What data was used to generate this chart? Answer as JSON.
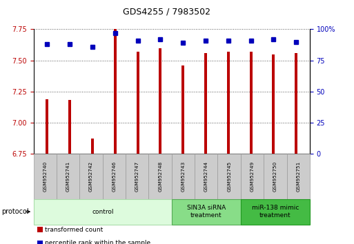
{
  "title": "GDS4255 / 7983502",
  "samples": [
    "GSM952740",
    "GSM952741",
    "GSM952742",
    "GSM952746",
    "GSM952747",
    "GSM952748",
    "GSM952743",
    "GSM952744",
    "GSM952745",
    "GSM952749",
    "GSM952750",
    "GSM952751"
  ],
  "transformed_counts": [
    7.19,
    7.18,
    6.87,
    7.75,
    7.57,
    7.6,
    7.46,
    7.56,
    7.57,
    7.57,
    7.55,
    7.56
  ],
  "percentile_ranks": [
    88,
    88,
    86,
    97,
    91,
    92,
    89,
    91,
    91,
    91,
    92,
    90
  ],
  "ylim_left": [
    6.75,
    7.75
  ],
  "ylim_right": [
    0,
    100
  ],
  "yticks_left": [
    6.75,
    7.0,
    7.25,
    7.5,
    7.75
  ],
  "yticks_right": [
    0,
    25,
    50,
    75,
    100
  ],
  "ytick_labels_right": [
    "0",
    "25",
    "50",
    "75",
    "100%"
  ],
  "bar_color": "#bb0000",
  "dot_color": "#0000bb",
  "groups": [
    {
      "label": "control",
      "start": 0,
      "end": 6,
      "color": "#ddfbdd",
      "edge_color": "#aaddaa"
    },
    {
      "label": "SIN3A siRNA\ntreatment",
      "start": 6,
      "end": 9,
      "color": "#88dd88",
      "edge_color": "#55aa55"
    },
    {
      "label": "miR-138 mimic\ntreatment",
      "start": 9,
      "end": 12,
      "color": "#44bb44",
      "edge_color": "#229922"
    }
  ],
  "legend_items": [
    {
      "label": "transformed count",
      "color": "#bb0000"
    },
    {
      "label": "percentile rank within the sample",
      "color": "#0000bb"
    }
  ],
  "protocol_label": "protocol",
  "background_color": "#ffffff",
  "grid_color": "#555555",
  "bar_bottom": 6.75,
  "bar_width": 0.12
}
